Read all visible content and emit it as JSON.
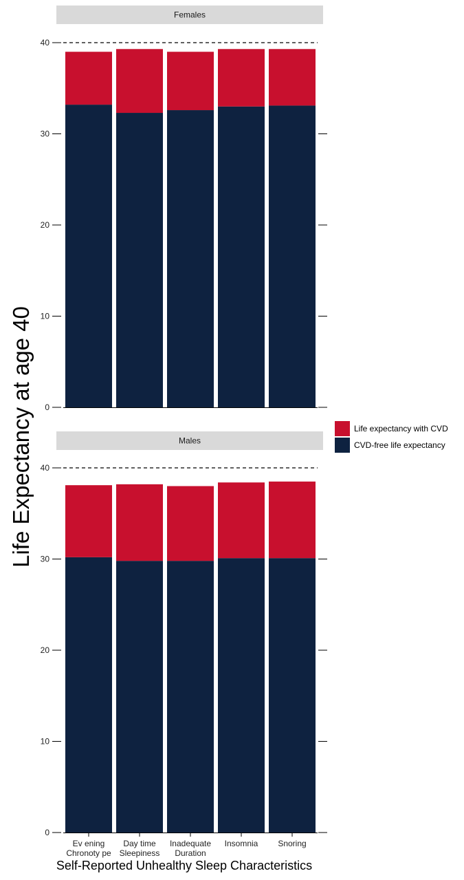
{
  "chart_data": {
    "type": "bar",
    "stacked": true,
    "ylabel": "Life Expectancy at age 40",
    "xlabel": "Self-Reported Unhealthy Sleep Characteristics",
    "categories": [
      "Evening Chronotype",
      "Daytime Sleepiness",
      "Inadequate Duration",
      "Insomnia",
      "Snoring"
    ],
    "category_tick_labels": [
      [
        "Ev ening",
        "Chronoty pe"
      ],
      [
        "Day time",
        "Sleepiness"
      ],
      [
        "Inadequate",
        "Duration"
      ],
      [
        "Insomnia"
      ],
      [
        "Snoring"
      ]
    ],
    "ylim": [
      0,
      40
    ],
    "yticks": [
      0,
      10,
      20,
      30,
      40
    ],
    "reference_line": 40,
    "grid": false,
    "legend_position": "right",
    "legend": [
      {
        "label": "Life expectancy with CVD",
        "color": "#c8102e"
      },
      {
        "label": "CVD-free life expectancy",
        "color": "#0e2240"
      }
    ],
    "panels": [
      {
        "title": "Females",
        "series": [
          {
            "name": "CVD-free life expectancy",
            "color": "#0e2240",
            "values": [
              33.2,
              32.3,
              32.6,
              33.0,
              33.1
            ]
          },
          {
            "name": "Life expectancy with CVD",
            "color": "#c8102e",
            "values": [
              5.8,
              7.0,
              6.4,
              6.3,
              6.2
            ]
          }
        ]
      },
      {
        "title": "Males",
        "series": [
          {
            "name": "CVD-free life expectancy",
            "color": "#0e2240",
            "values": [
              30.2,
              29.8,
              29.8,
              30.1,
              30.1
            ]
          },
          {
            "name": "Life expectancy with CVD",
            "color": "#c8102e",
            "values": [
              7.9,
              8.4,
              8.2,
              8.3,
              8.4
            ]
          }
        ]
      }
    ]
  }
}
